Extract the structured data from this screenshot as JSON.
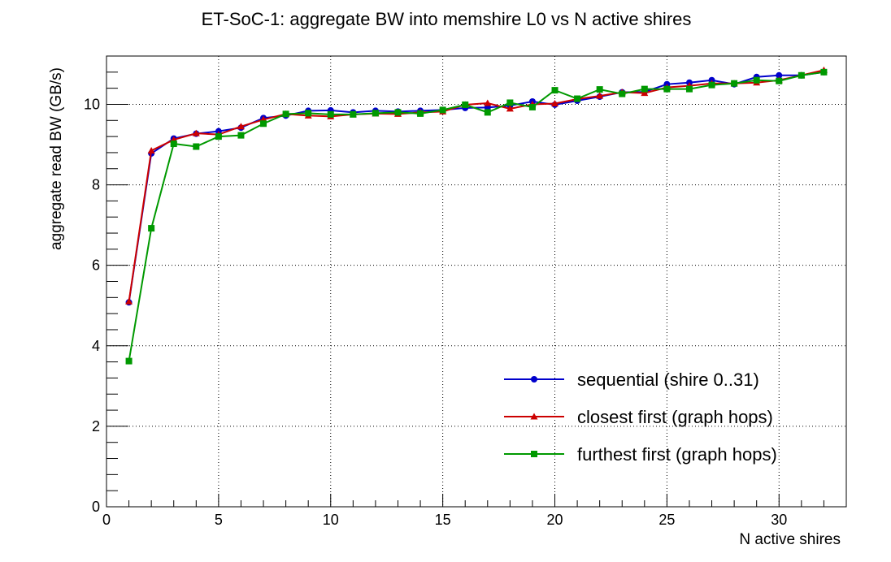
{
  "chart_data": {
    "type": "line",
    "title": "ET-SoC-1: aggregate BW into memshire L0 vs N active shires",
    "xlabel": "N active shires",
    "ylabel": "aggregate read BW (GB/s)",
    "xlim": [
      0,
      33
    ],
    "ylim": [
      0,
      11.2
    ],
    "xticks": [
      0,
      5,
      10,
      15,
      20,
      25,
      30
    ],
    "yticks": [
      0,
      2,
      4,
      6,
      8,
      10
    ],
    "grid": true,
    "legend_position": "bottom-right",
    "x": [
      1,
      2,
      3,
      4,
      5,
      6,
      7,
      8,
      9,
      10,
      11,
      12,
      13,
      14,
      15,
      16,
      17,
      18,
      19,
      20,
      21,
      22,
      23,
      24,
      25,
      26,
      27,
      28,
      29,
      30,
      31,
      32
    ],
    "series": [
      {
        "name": "sequential (shire 0..31)",
        "color": "#0000cc",
        "marker": "circle",
        "values": [
          5.08,
          8.78,
          9.15,
          9.27,
          9.33,
          9.42,
          9.66,
          9.72,
          9.84,
          9.85,
          9.8,
          9.84,
          9.82,
          9.84,
          9.86,
          9.91,
          9.92,
          9.97,
          10.07,
          9.99,
          10.09,
          10.19,
          10.3,
          10.31,
          10.5,
          10.54,
          10.6,
          10.5,
          10.68,
          10.72,
          10.72,
          10.8
        ]
      },
      {
        "name": "closest first (graph hops)",
        "color": "#cc0000",
        "marker": "triangle",
        "values": [
          5.1,
          8.85,
          9.12,
          9.28,
          9.25,
          9.45,
          9.62,
          9.76,
          9.72,
          9.7,
          9.75,
          9.77,
          9.76,
          9.8,
          9.82,
          9.99,
          10.03,
          9.89,
          10.0,
          10.02,
          10.13,
          10.21,
          10.3,
          10.28,
          10.42,
          10.46,
          10.52,
          10.52,
          10.54,
          10.6,
          10.72,
          10.85
        ]
      },
      {
        "name": "furthest first (graph hops)",
        "color": "#009900",
        "marker": "square",
        "values": [
          3.62,
          6.92,
          9.02,
          8.95,
          9.2,
          9.23,
          9.52,
          9.76,
          9.78,
          9.75,
          9.75,
          9.78,
          9.8,
          9.77,
          9.86,
          9.99,
          9.8,
          10.04,
          9.93,
          10.35,
          10.14,
          10.37,
          10.26,
          10.38,
          10.38,
          10.38,
          10.48,
          10.52,
          10.6,
          10.58,
          10.72,
          10.8
        ]
      }
    ]
  }
}
